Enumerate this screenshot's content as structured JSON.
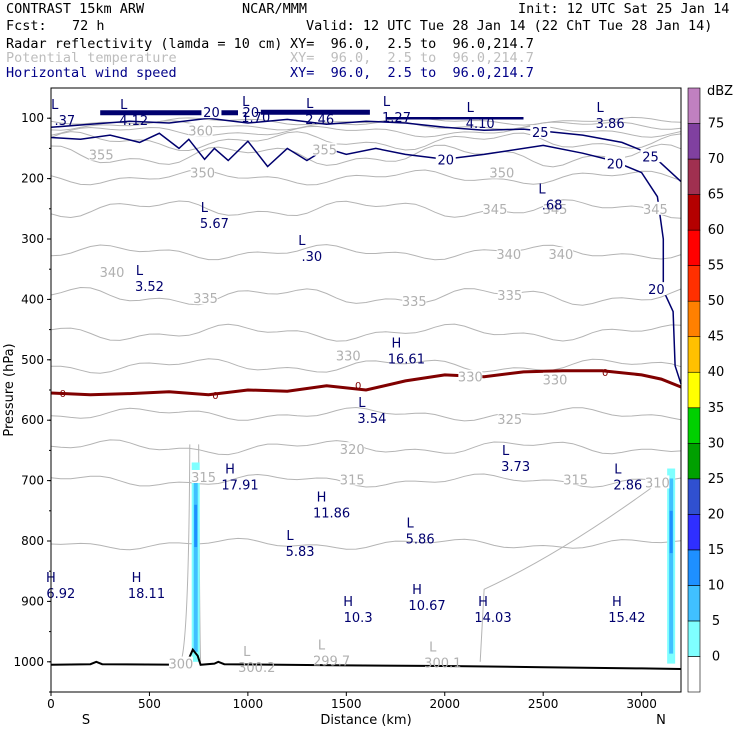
{
  "header": {
    "model": "CONTRAST 15km ARW",
    "center": "NCAR/MMM",
    "init": "Init: 12 UTC Sat 25 Jan 14",
    "fcst_label": "Fcst:",
    "fcst_value": "72 h",
    "valid": "Valid: 12 UTC Tue 28 Jan 14 (22 ChT Tue 28 Jan 14)"
  },
  "fields": [
    {
      "name": "Radar reflectivity (lamda = 10 cm)",
      "xy": "XY=  96.0,  2.5 to  96.0,214.7",
      "color": "#000000"
    },
    {
      "name": "Potential temperature",
      "xy": "XY=  96.0,  2.5 to  96.0,214.7",
      "color": "#bdbdbd"
    },
    {
      "name": "Horizontal wind speed",
      "xy": "XY=  96.0,  2.5 to  96.0,214.7",
      "color": "#000088"
    }
  ],
  "chart_data": {
    "type": "cross-section",
    "xlabel": "Distance (km)",
    "ylabel": "Pressure (hPa)",
    "xlim": [
      0,
      3200
    ],
    "ylim": [
      1050,
      50
    ],
    "x_ticks": [
      0,
      500,
      1000,
      1500,
      2000,
      2500,
      3000
    ],
    "y_ticks": [
      100,
      200,
      300,
      400,
      500,
      600,
      700,
      800,
      900,
      1000
    ],
    "x_end_labels": {
      "left": "S",
      "right": "N"
    },
    "colorbar": {
      "title": "dBZ",
      "levels": [
        0,
        5,
        10,
        15,
        20,
        25,
        30,
        35,
        40,
        45,
        50,
        55,
        60,
        65,
        70,
        75
      ],
      "colors": [
        "#ffffff",
        "#7fffff",
        "#40c0ff",
        "#1e90ff",
        "#2f2fff",
        "#3050d0",
        "#00a000",
        "#00d000",
        "#ffff00",
        "#ffc000",
        "#ff8000",
        "#ff3000",
        "#ff0000",
        "#b40000",
        "#a03050",
        "#8040a0",
        "#c080c0"
      ]
    },
    "theta_labels": [
      {
        "text": "360",
        "x": 760,
        "p": 120
      },
      {
        "text": "355",
        "x": 255,
        "p": 160
      },
      {
        "text": "355",
        "x": 1390,
        "p": 152
      },
      {
        "text": "350",
        "x": 770,
        "p": 190
      },
      {
        "text": "350",
        "x": 2290,
        "p": 190
      },
      {
        "text": "345",
        "x": 2255,
        "p": 250
      },
      {
        "text": "345",
        "x": 2560,
        "p": 250
      },
      {
        "text": "345",
        "x": 3070,
        "p": 250
      },
      {
        "text": "340",
        "x": 310,
        "p": 355
      },
      {
        "text": "340",
        "x": 2325,
        "p": 325
      },
      {
        "text": "340",
        "x": 2590,
        "p": 325
      },
      {
        "text": "335",
        "x": 785,
        "p": 398
      },
      {
        "text": "335",
        "x": 1845,
        "p": 403
      },
      {
        "text": "335",
        "x": 2330,
        "p": 393
      },
      {
        "text": "330",
        "x": 1510,
        "p": 493
      },
      {
        "text": "330",
        "x": 2130,
        "p": 528
      },
      {
        "text": "330",
        "x": 2560,
        "p": 533
      },
      {
        "text": "325",
        "x": 2330,
        "p": 598
      },
      {
        "text": "320",
        "x": 1530,
        "p": 648
      },
      {
        "text": "315",
        "x": 775,
        "p": 694
      },
      {
        "text": "315",
        "x": 1530,
        "p": 698
      },
      {
        "text": "315",
        "x": 2665,
        "p": 698
      },
      {
        "text": "310",
        "x": 3080,
        "p": 703
      },
      {
        "text": "300",
        "x": 660,
        "p": 1003
      }
    ],
    "wind_labels": [
      {
        "text": "20",
        "x": 815,
        "p": 90
      },
      {
        "text": "20",
        "x": 1015,
        "p": 90
      },
      {
        "text": "20",
        "x": 2005,
        "p": 168
      },
      {
        "text": "20",
        "x": 2865,
        "p": 175
      },
      {
        "text": "20",
        "x": 3075,
        "p": 383
      },
      {
        "text": "25",
        "x": 2485,
        "p": 123
      },
      {
        "text": "25",
        "x": 3045,
        "p": 163
      }
    ],
    "freezing_level": {
      "label": "0",
      "points": [
        [
          0,
          555
        ],
        [
          200,
          558
        ],
        [
          400,
          556
        ],
        [
          600,
          553
        ],
        [
          800,
          558
        ],
        [
          1000,
          550
        ],
        [
          1200,
          552
        ],
        [
          1400,
          543
        ],
        [
          1600,
          550
        ],
        [
          1800,
          535
        ],
        [
          2000,
          525
        ],
        [
          2200,
          528
        ],
        [
          2400,
          520
        ],
        [
          2600,
          518
        ],
        [
          2800,
          518
        ],
        [
          3000,
          525
        ],
        [
          3100,
          532
        ],
        [
          3200,
          545
        ]
      ]
    },
    "extrema": [
      {
        "type": "L",
        "value": ".37",
        "x": 70,
        "p": 85
      },
      {
        "type": "L",
        "value": "4.12",
        "x": 420,
        "p": 85
      },
      {
        "type": "L",
        "value": "1.70",
        "x": 1040,
        "p": 80
      },
      {
        "type": "L",
        "value": "2.46",
        "x": 1365,
        "p": 83
      },
      {
        "type": "L",
        "value": "1.27",
        "x": 1755,
        "p": 80
      },
      {
        "type": "L",
        "value": "4.10",
        "x": 2180,
        "p": 90
      },
      {
        "type": "L",
        "value": "3.86",
        "x": 2840,
        "p": 90
      },
      {
        "type": "L",
        "value": "5.67",
        "x": 830,
        "p": 255
      },
      {
        "type": "L",
        "value": ".68",
        "x": 2545,
        "p": 225
      },
      {
        "type": "L",
        "value": ".30",
        "x": 1325,
        "p": 310
      },
      {
        "type": "L",
        "value": "3.52",
        "x": 500,
        "p": 360
      },
      {
        "type": "H",
        "value": "16.61",
        "x": 1805,
        "p": 480
      },
      {
        "type": "L",
        "value": "3.54",
        "x": 1630,
        "p": 578
      },
      {
        "type": "L",
        "value": "3.73",
        "x": 2360,
        "p": 658
      },
      {
        "type": "H",
        "value": "17.91",
        "x": 960,
        "p": 688
      },
      {
        "type": "L",
        "value": "2.86",
        "x": 2930,
        "p": 688
      },
      {
        "type": "H",
        "value": "11.86",
        "x": 1425,
        "p": 735
      },
      {
        "type": "L",
        "value": "5.86",
        "x": 1875,
        "p": 778
      },
      {
        "type": "L",
        "value": "5.83",
        "x": 1265,
        "p": 798
      },
      {
        "type": "H",
        "value": "6.92",
        "x": 50,
        "p": 868
      },
      {
        "type": "H",
        "value": "18.11",
        "x": 485,
        "p": 868
      },
      {
        "type": "H",
        "value": "10.3",
        "x": 1560,
        "p": 908
      },
      {
        "type": "H",
        "value": "10.67",
        "x": 1910,
        "p": 888
      },
      {
        "type": "H",
        "value": "14.03",
        "x": 2245,
        "p": 908
      },
      {
        "type": "H",
        "value": "15.42",
        "x": 2925,
        "p": 908
      },
      {
        "type": "L",
        "value": "300.2",
        "x": 1045,
        "p": 990
      },
      {
        "type": "L",
        "value": "299.7",
        "x": 1425,
        "p": 980
      },
      {
        "type": "L",
        "value": "300.1",
        "x": 1990,
        "p": 983
      }
    ],
    "reflectivity_columns": [
      {
        "x": 735,
        "p_top": 670,
        "p_bottom": 1000,
        "core_dbz": 15
      },
      {
        "x": 3150,
        "p_top": 680,
        "p_bottom": 1003,
        "core_dbz": 15
      }
    ],
    "terrain": [
      [
        0,
        1005
      ],
      [
        200,
        1004
      ],
      [
        230,
        1000
      ],
      [
        260,
        1004
      ],
      [
        680,
        1005
      ],
      [
        700,
        995
      ],
      [
        720,
        980
      ],
      [
        745,
        990
      ],
      [
        760,
        1005
      ],
      [
        830,
        1003
      ],
      [
        850,
        1000
      ],
      [
        880,
        1004
      ],
      [
        1500,
        1006
      ],
      [
        2000,
        1007
      ],
      [
        2500,
        1009
      ],
      [
        3000,
        1011
      ],
      [
        3200,
        1012
      ]
    ]
  }
}
